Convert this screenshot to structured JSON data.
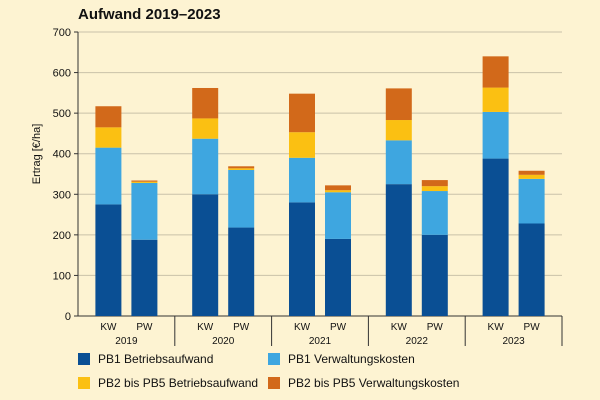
{
  "title": "Aufwand 2019–2023",
  "colors": {
    "background": "#fdf3d2",
    "plot_background": "#fdf3d2",
    "PB1 Betriebsaufwand": "#0a4f94",
    "PB1 Verwaltungskosten": "#3ea6e0",
    "PB2 bis PB5 Betriebsaufwand": "#fbc012",
    "PB2 bis PB5 Verwaltungskosten": "#d2691a"
  },
  "chart_data": {
    "type": "bar",
    "stacked": true,
    "title": "Aufwand 2019–2023",
    "ylabel": "Ertrag [€/ha]",
    "xlabel": "",
    "ylim": [
      0,
      700
    ],
    "yticks": [
      0,
      100,
      200,
      300,
      400,
      500,
      600,
      700
    ],
    "groups": [
      "2019",
      "2020",
      "2021",
      "2022",
      "2023"
    ],
    "categories": [
      "KW",
      "PW"
    ],
    "grid": true,
    "legend_position": "bottom",
    "series": [
      {
        "name": "PB1 Betriebsaufwand",
        "values": [
          [
            275,
            188
          ],
          [
            300,
            218
          ],
          [
            280,
            190
          ],
          [
            325,
            200
          ],
          [
            388,
            228
          ]
        ]
      },
      {
        "name": "PB1 Verwaltungskosten",
        "values": [
          [
            140,
            140
          ],
          [
            137,
            142
          ],
          [
            110,
            115
          ],
          [
            108,
            108
          ],
          [
            115,
            110
          ]
        ]
      },
      {
        "name": "PB2 bis PB5 Betriebsaufwand",
        "values": [
          [
            50,
            3
          ],
          [
            50,
            4
          ],
          [
            63,
            5
          ],
          [
            50,
            12
          ],
          [
            60,
            10
          ]
        ]
      },
      {
        "name": "PB2 bis PB5 Verwaltungskosten",
        "values": [
          [
            52,
            3
          ],
          [
            75,
            5
          ],
          [
            95,
            12
          ],
          [
            78,
            15
          ],
          [
            77,
            10
          ]
        ]
      }
    ]
  },
  "legend": [
    "PB1 Betriebsaufwand",
    "PB1 Verwaltungskosten",
    "PB2 bis PB5 Betriebsaufwand",
    "PB2 bis PB5 Verwaltungskosten"
  ]
}
